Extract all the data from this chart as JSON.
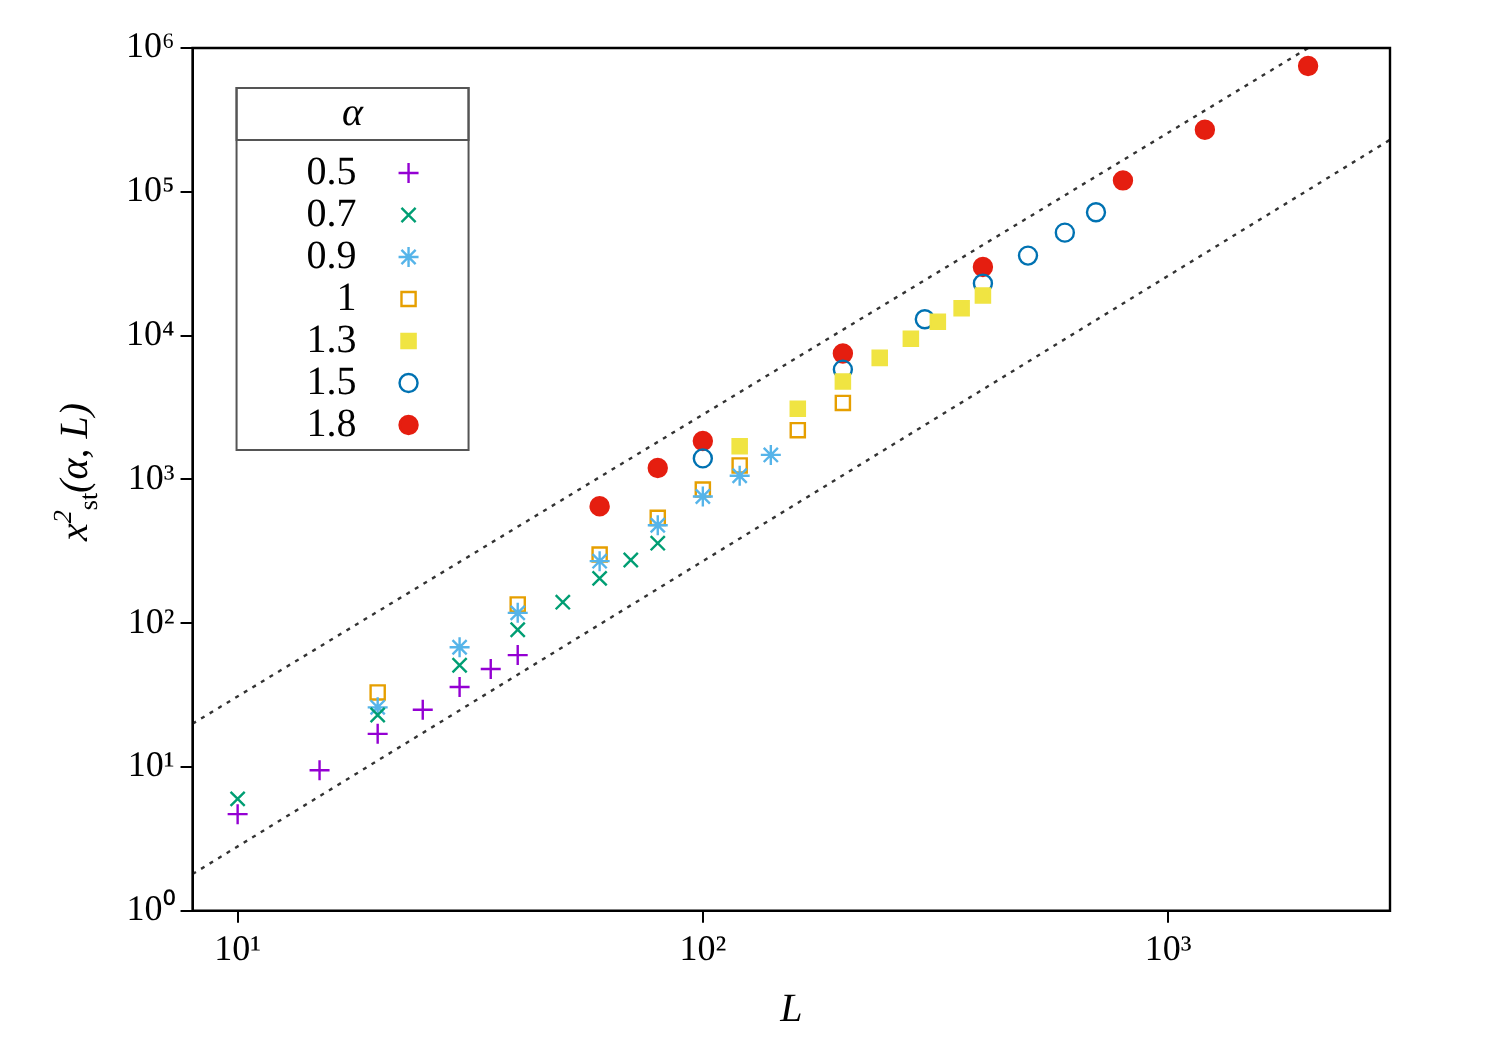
{
  "chart_data": {
    "type": "scatter",
    "xlabel": "L",
    "ylabel": "x$^{2}$$_{st}$(α, L)",
    "legend_title": "α",
    "legend": "top left",
    "log": "xy",
    "grid": false,
    "xlim": [
      8,
      3000
    ],
    "xticks": [
      {
        "value": 10,
        "label": "10¹"
      },
      {
        "value": 100,
        "label": "10²"
      },
      {
        "value": 1000,
        "label": "10³"
      }
    ],
    "ylim": [
      1,
      1000000
    ],
    "yticks": [
      {
        "value": 1,
        "label": "10⁰"
      },
      {
        "value": 10,
        "label": "10¹"
      },
      {
        "value": 100,
        "label": "10²"
      },
      {
        "value": 1000,
        "label": "10³"
      },
      {
        "value": 10000,
        "label": "10⁴"
      },
      {
        "value": 100000,
        "label": "10⁵"
      },
      {
        "value": 1000000,
        "label": "10⁶"
      }
    ],
    "series": [
      {
        "name": "0.5",
        "color": "#9400d3",
        "marker": "plus",
        "x": [
          10,
          15,
          20,
          25,
          30,
          35,
          40
        ],
        "values": [
          4.7,
          9.5,
          17,
          25,
          36,
          48,
          60
        ]
      },
      {
        "name": "0.7",
        "color": "#009e73",
        "marker": "x",
        "x": [
          10,
          20,
          30,
          40,
          50,
          60,
          70,
          80
        ],
        "values": [
          6,
          23,
          51,
          90,
          140,
          205,
          275,
          360
        ]
      },
      {
        "name": "0.9",
        "color": "#56b4e9",
        "marker": "cross",
        "x": [
          20,
          30,
          40,
          60,
          80,
          100,
          120,
          140
        ],
        "values": [
          26,
          68,
          118,
          270,
          480,
          760,
          1060,
          1480
        ]
      },
      {
        "name": "1",
        "color": "#e69f00",
        "marker": "square-open",
        "x": [
          20,
          40,
          60,
          80,
          100,
          120,
          160,
          200
        ],
        "values": [
          33,
          135,
          300,
          540,
          850,
          1250,
          2200,
          3400
        ]
      },
      {
        "name": "1.3",
        "color": "#f0e442",
        "marker": "square",
        "x": [
          120,
          160,
          200,
          240,
          280,
          320,
          360,
          400
        ],
        "values": [
          1700,
          3100,
          4800,
          7000,
          9500,
          12500,
          15500,
          19000
        ]
      },
      {
        "name": "1.5",
        "color": "#0072b2",
        "marker": "circle-open",
        "x": [
          100,
          200,
          300,
          400,
          500,
          600,
          700
        ],
        "values": [
          1400,
          5800,
          13000,
          23000,
          36000,
          52000,
          72000
        ]
      },
      {
        "name": "1.8",
        "color": "#e51e10",
        "marker": "circle",
        "x": [
          60,
          80,
          100,
          200,
          400,
          800,
          1200,
          2000
        ],
        "values": [
          650,
          1200,
          1850,
          7500,
          30000,
          120000,
          270000,
          750000
        ]
      },
      {
        "type": "line",
        "color": "#333333",
        "marker": "none",
        "line_style": "dotted",
        "x": [
          8,
          2000
        ],
        "values": [
          20,
          1000000
        ]
      },
      {
        "type": "line",
        "color": "#333333",
        "marker": "none",
        "line_style": "dotted",
        "x": [
          8,
          3000
        ],
        "values": [
          1.8,
          230000
        ]
      }
    ]
  }
}
